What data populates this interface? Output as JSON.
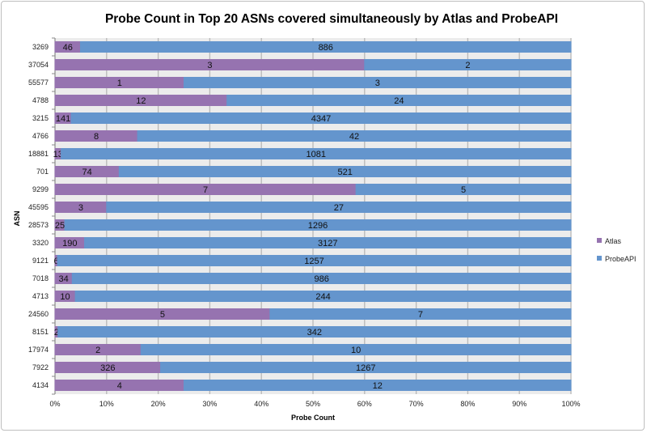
{
  "chart_data": {
    "type": "bar",
    "orientation": "horizontal",
    "stacking": "percent",
    "title": "Probe Count in Top 20 ASNs covered simultaneously by Atlas and ProbeAPI",
    "xlabel": "Probe Count",
    "ylabel": "ASN",
    "xlim": [
      0,
      100
    ],
    "xticks": [
      "0%",
      "10%",
      "20%",
      "30%",
      "40%",
      "50%",
      "60%",
      "70%",
      "80%",
      "90%",
      "100%"
    ],
    "grid": true,
    "legend": "right",
    "categories": [
      "3269",
      "37054",
      "55577",
      "4788",
      "3215",
      "4766",
      "18881",
      "701",
      "9299",
      "45595",
      "28573",
      "3320",
      "9121",
      "7018",
      "4713",
      "24560",
      "8151",
      "17974",
      "7922",
      "4134"
    ],
    "series": [
      {
        "name": "Atlas",
        "color": "#9673b0",
        "values": [
          46,
          3,
          1,
          12,
          141,
          8,
          13,
          74,
          7,
          3,
          25,
          190,
          6,
          34,
          10,
          5,
          2,
          2,
          326,
          4
        ]
      },
      {
        "name": "ProbeAPI",
        "color": "#6495cd",
        "values": [
          886,
          2,
          3,
          24,
          4347,
          42,
          1081,
          521,
          5,
          27,
          1296,
          3127,
          1257,
          986,
          244,
          7,
          342,
          10,
          1267,
          12
        ]
      }
    ]
  }
}
